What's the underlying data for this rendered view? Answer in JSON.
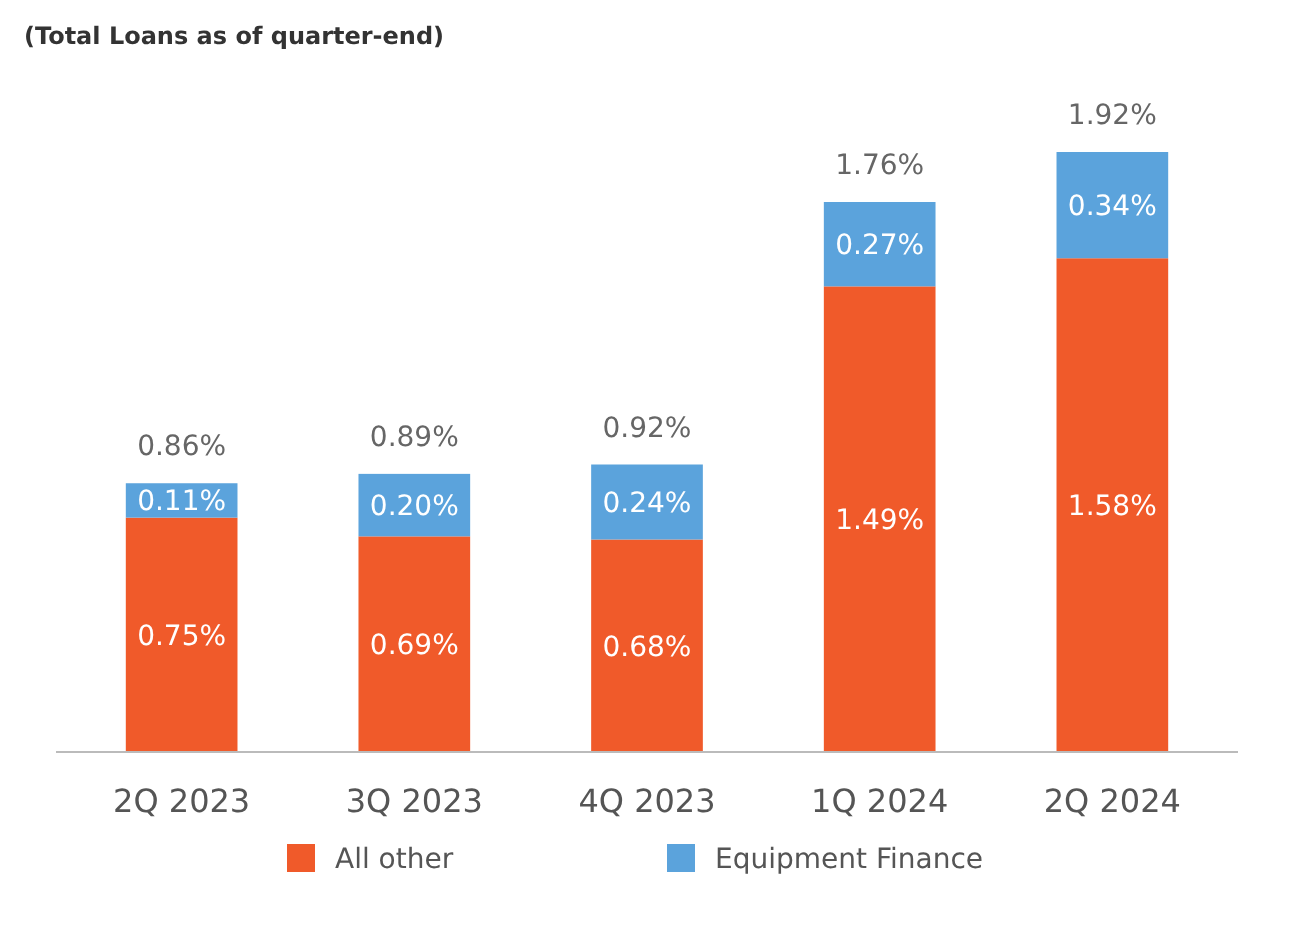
{
  "chart_data": {
    "type": "bar",
    "subtitle": "(Total Loans as of quarter-end)",
    "categories": [
      "2Q 2023",
      "3Q 2023",
      "4Q 2023",
      "1Q 2024",
      "2Q 2024"
    ],
    "stacked": true,
    "legend": "bottom",
    "series": [
      {
        "name": "All other",
        "color": "#f05a2a",
        "values": [
          0.75,
          0.69,
          0.68,
          1.49,
          1.58
        ],
        "value_labels": [
          "0.75%",
          "0.69%",
          "0.68%",
          "1.49%",
          "1.58%"
        ]
      },
      {
        "name": "Equipment Finance",
        "color": "#5ba3dc",
        "values": [
          0.11,
          0.2,
          0.24,
          0.27,
          0.34
        ],
        "value_labels": [
          "0.11%",
          "0.20%",
          "0.24%",
          "0.27%",
          "0.34%"
        ]
      }
    ],
    "totals": [
      "0.86%",
      "0.89%",
      "0.92%",
      "1.76%",
      "1.92%"
    ]
  }
}
